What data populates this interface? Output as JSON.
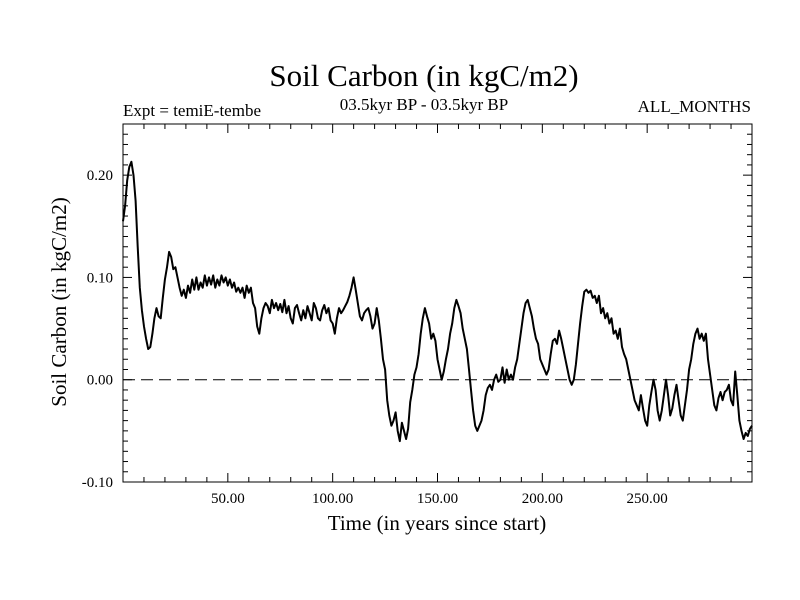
{
  "chart_data": {
    "type": "line",
    "title": "Soil Carbon (in kgC/m2)",
    "subtitle_left": "Expt = temiE-tembe",
    "subtitle_center": "03.5kyr BP - 03.5kyr BP",
    "subtitle_right": "ALL_MONTHS",
    "xlabel": "Time (in years since start)",
    "ylabel": "Soil Carbon (in kgC/m2)",
    "xlim": [
      0,
      300
    ],
    "ylim": [
      -0.1,
      0.25
    ],
    "x_ticks": [
      {
        "value": 50,
        "label": "50.00"
      },
      {
        "value": 100,
        "label": "100.00"
      },
      {
        "value": 150,
        "label": "150.00"
      },
      {
        "value": 200,
        "label": "200.00"
      },
      {
        "value": 250,
        "label": "250.00"
      }
    ],
    "y_ticks": [
      {
        "value": -0.1,
        "label": "-0.10"
      },
      {
        "value": 0.0,
        "label": "0.00"
      },
      {
        "value": 0.1,
        "label": "0.10"
      },
      {
        "value": 0.2,
        "label": "0.20"
      }
    ],
    "reference_line": {
      "y": 0.0,
      "style": "dashed"
    },
    "grid": false,
    "series": [
      {
        "color": "#000000",
        "points": [
          [
            0,
            0.155
          ],
          [
            1,
            0.17
          ],
          [
            2,
            0.195
          ],
          [
            3,
            0.208
          ],
          [
            4,
            0.213
          ],
          [
            5,
            0.2
          ],
          [
            6,
            0.175
          ],
          [
            7,
            0.13
          ],
          [
            8,
            0.09
          ],
          [
            9,
            0.068
          ],
          [
            10,
            0.052
          ],
          [
            11,
            0.04
          ],
          [
            12,
            0.03
          ],
          [
            13,
            0.032
          ],
          [
            14,
            0.045
          ],
          [
            15,
            0.06
          ],
          [
            16,
            0.07
          ],
          [
            17,
            0.062
          ],
          [
            18,
            0.06
          ],
          [
            19,
            0.08
          ],
          [
            20,
            0.098
          ],
          [
            21,
            0.11
          ],
          [
            22,
            0.125
          ],
          [
            23,
            0.12
          ],
          [
            24,
            0.108
          ],
          [
            25,
            0.11
          ],
          [
            26,
            0.1
          ],
          [
            27,
            0.09
          ],
          [
            28,
            0.082
          ],
          [
            29,
            0.088
          ],
          [
            30,
            0.08
          ],
          [
            31,
            0.092
          ],
          [
            32,
            0.085
          ],
          [
            33,
            0.098
          ],
          [
            34,
            0.088
          ],
          [
            35,
            0.1
          ],
          [
            36,
            0.088
          ],
          [
            37,
            0.095
          ],
          [
            38,
            0.09
          ],
          [
            39,
            0.102
          ],
          [
            40,
            0.092
          ],
          [
            41,
            0.1
          ],
          [
            42,
            0.093
          ],
          [
            43,
            0.102
          ],
          [
            44,
            0.09
          ],
          [
            45,
            0.098
          ],
          [
            46,
            0.092
          ],
          [
            47,
            0.102
          ],
          [
            48,
            0.095
          ],
          [
            49,
            0.1
          ],
          [
            50,
            0.092
          ],
          [
            51,
            0.098
          ],
          [
            52,
            0.09
          ],
          [
            53,
            0.095
          ],
          [
            54,
            0.086
          ],
          [
            55,
            0.09
          ],
          [
            56,
            0.085
          ],
          [
            57,
            0.09
          ],
          [
            58,
            0.08
          ],
          [
            59,
            0.092
          ],
          [
            60,
            0.085
          ],
          [
            61,
            0.09
          ],
          [
            62,
            0.075
          ],
          [
            63,
            0.07
          ],
          [
            64,
            0.052
          ],
          [
            65,
            0.045
          ],
          [
            66,
            0.06
          ],
          [
            67,
            0.07
          ],
          [
            68,
            0.075
          ],
          [
            69,
            0.072
          ],
          [
            70,
            0.065
          ],
          [
            71,
            0.078
          ],
          [
            72,
            0.07
          ],
          [
            73,
            0.075
          ],
          [
            74,
            0.068
          ],
          [
            75,
            0.074
          ],
          [
            76,
            0.066
          ],
          [
            77,
            0.078
          ],
          [
            78,
            0.065
          ],
          [
            79,
            0.072
          ],
          [
            80,
            0.06
          ],
          [
            81,
            0.055
          ],
          [
            82,
            0.07
          ],
          [
            83,
            0.073
          ],
          [
            84,
            0.065
          ],
          [
            85,
            0.058
          ],
          [
            86,
            0.068
          ],
          [
            87,
            0.06
          ],
          [
            88,
            0.072
          ],
          [
            89,
            0.065
          ],
          [
            90,
            0.058
          ],
          [
            91,
            0.075
          ],
          [
            92,
            0.07
          ],
          [
            93,
            0.06
          ],
          [
            94,
            0.058
          ],
          [
            95,
            0.068
          ],
          [
            96,
            0.073
          ],
          [
            97,
            0.065
          ],
          [
            98,
            0.07
          ],
          [
            99,
            0.058
          ],
          [
            100,
            0.055
          ],
          [
            101,
            0.045
          ],
          [
            102,
            0.06
          ],
          [
            103,
            0.07
          ],
          [
            104,
            0.065
          ],
          [
            105,
            0.068
          ],
          [
            106,
            0.072
          ],
          [
            107,
            0.076
          ],
          [
            108,
            0.082
          ],
          [
            109,
            0.09
          ],
          [
            110,
            0.1
          ],
          [
            111,
            0.088
          ],
          [
            112,
            0.075
          ],
          [
            113,
            0.062
          ],
          [
            114,
            0.058
          ],
          [
            115,
            0.065
          ],
          [
            116,
            0.068
          ],
          [
            117,
            0.07
          ],
          [
            118,
            0.062
          ],
          [
            119,
            0.05
          ],
          [
            120,
            0.055
          ],
          [
            121,
            0.07
          ],
          [
            122,
            0.058
          ],
          [
            123,
            0.04
          ],
          [
            124,
            0.02
          ],
          [
            125,
            0.01
          ],
          [
            126,
            -0.02
          ],
          [
            127,
            -0.035
          ],
          [
            128,
            -0.045
          ],
          [
            129,
            -0.04
          ],
          [
            130,
            -0.032
          ],
          [
            131,
            -0.05
          ],
          [
            132,
            -0.06
          ],
          [
            133,
            -0.042
          ],
          [
            134,
            -0.05
          ],
          [
            135,
            -0.058
          ],
          [
            136,
            -0.048
          ],
          [
            137,
            -0.022
          ],
          [
            138,
            -0.01
          ],
          [
            139,
            0.005
          ],
          [
            140,
            0.012
          ],
          [
            141,
            0.025
          ],
          [
            142,
            0.045
          ],
          [
            143,
            0.06
          ],
          [
            144,
            0.07
          ],
          [
            145,
            0.062
          ],
          [
            146,
            0.055
          ],
          [
            147,
            0.04
          ],
          [
            148,
            0.045
          ],
          [
            149,
            0.038
          ],
          [
            150,
            0.02
          ],
          [
            151,
            0.01
          ],
          [
            152,
            0.0
          ],
          [
            153,
            0.008
          ],
          [
            154,
            0.02
          ],
          [
            155,
            0.03
          ],
          [
            156,
            0.045
          ],
          [
            157,
            0.055
          ],
          [
            158,
            0.07
          ],
          [
            159,
            0.078
          ],
          [
            160,
            0.072
          ],
          [
            161,
            0.065
          ],
          [
            162,
            0.05
          ],
          [
            163,
            0.04
          ],
          [
            164,
            0.03
          ],
          [
            165,
            0.01
          ],
          [
            166,
            -0.01
          ],
          [
            167,
            -0.03
          ],
          [
            168,
            -0.045
          ],
          [
            169,
            -0.05
          ],
          [
            170,
            -0.045
          ],
          [
            171,
            -0.04
          ],
          [
            172,
            -0.03
          ],
          [
            173,
            -0.015
          ],
          [
            174,
            -0.008
          ],
          [
            175,
            -0.005
          ],
          [
            176,
            -0.01
          ],
          [
            177,
            0.0
          ],
          [
            178,
            0.005
          ],
          [
            179,
            -0.002
          ],
          [
            180,
            0.0
          ],
          [
            181,
            0.012
          ],
          [
            182,
            -0.003
          ],
          [
            183,
            0.01
          ],
          [
            184,
            0.0
          ],
          [
            185,
            0.005
          ],
          [
            186,
            0.0
          ],
          [
            187,
            0.012
          ],
          [
            188,
            0.02
          ],
          [
            189,
            0.035
          ],
          [
            190,
            0.05
          ],
          [
            191,
            0.065
          ],
          [
            192,
            0.075
          ],
          [
            193,
            0.078
          ],
          [
            194,
            0.07
          ],
          [
            195,
            0.062
          ],
          [
            196,
            0.05
          ],
          [
            197,
            0.04
          ],
          [
            198,
            0.035
          ],
          [
            199,
            0.02
          ],
          [
            200,
            0.015
          ],
          [
            201,
            0.01
          ],
          [
            202,
            0.005
          ],
          [
            203,
            0.01
          ],
          [
            204,
            0.025
          ],
          [
            205,
            0.038
          ],
          [
            206,
            0.04
          ],
          [
            207,
            0.035
          ],
          [
            208,
            0.048
          ],
          [
            209,
            0.04
          ],
          [
            210,
            0.03
          ],
          [
            211,
            0.02
          ],
          [
            212,
            0.01
          ],
          [
            213,
            0.0
          ],
          [
            214,
            -0.005
          ],
          [
            215,
            0.0
          ],
          [
            216,
            0.015
          ],
          [
            217,
            0.035
          ],
          [
            218,
            0.055
          ],
          [
            219,
            0.072
          ],
          [
            220,
            0.086
          ],
          [
            221,
            0.088
          ],
          [
            222,
            0.085
          ],
          [
            223,
            0.087
          ],
          [
            224,
            0.08
          ],
          [
            225,
            0.082
          ],
          [
            226,
            0.075
          ],
          [
            227,
            0.082
          ],
          [
            228,
            0.065
          ],
          [
            229,
            0.07
          ],
          [
            230,
            0.06
          ],
          [
            231,
            0.065
          ],
          [
            232,
            0.055
          ],
          [
            233,
            0.06
          ],
          [
            234,
            0.045
          ],
          [
            235,
            0.048
          ],
          [
            236,
            0.04
          ],
          [
            237,
            0.05
          ],
          [
            238,
            0.032
          ],
          [
            239,
            0.025
          ],
          [
            240,
            0.02
          ],
          [
            241,
            0.01
          ],
          [
            242,
            0.0
          ],
          [
            243,
            -0.01
          ],
          [
            244,
            -0.02
          ],
          [
            245,
            -0.025
          ],
          [
            246,
            -0.03
          ],
          [
            247,
            -0.015
          ],
          [
            248,
            -0.028
          ],
          [
            249,
            -0.04
          ],
          [
            250,
            -0.045
          ],
          [
            251,
            -0.025
          ],
          [
            252,
            -0.012
          ],
          [
            253,
            0.0
          ],
          [
            254,
            -0.01
          ],
          [
            255,
            -0.03
          ],
          [
            256,
            -0.04
          ],
          [
            257,
            -0.03
          ],
          [
            258,
            -0.015
          ],
          [
            259,
            0.0
          ],
          [
            260,
            -0.015
          ],
          [
            261,
            -0.035
          ],
          [
            262,
            -0.028
          ],
          [
            263,
            -0.015
          ],
          [
            264,
            -0.005
          ],
          [
            265,
            -0.02
          ],
          [
            266,
            -0.035
          ],
          [
            267,
            -0.04
          ],
          [
            268,
            -0.025
          ],
          [
            269,
            -0.01
          ],
          [
            270,
            0.01
          ],
          [
            271,
            0.02
          ],
          [
            272,
            0.035
          ],
          [
            273,
            0.045
          ],
          [
            274,
            0.05
          ],
          [
            275,
            0.04
          ],
          [
            276,
            0.045
          ],
          [
            277,
            0.038
          ],
          [
            278,
            0.045
          ],
          [
            279,
            0.02
          ],
          [
            280,
            0.005
          ],
          [
            281,
            -0.01
          ],
          [
            282,
            -0.025
          ],
          [
            283,
            -0.03
          ],
          [
            284,
            -0.018
          ],
          [
            285,
            -0.012
          ],
          [
            286,
            -0.02
          ],
          [
            287,
            -0.012
          ],
          [
            288,
            -0.01
          ],
          [
            289,
            -0.005
          ],
          [
            290,
            -0.02
          ],
          [
            291,
            -0.025
          ],
          [
            292,
            0.008
          ],
          [
            293,
            -0.015
          ],
          [
            294,
            -0.04
          ],
          [
            295,
            -0.05
          ],
          [
            296,
            -0.058
          ],
          [
            297,
            -0.052
          ],
          [
            298,
            -0.055
          ],
          [
            299,
            -0.048
          ],
          [
            300,
            -0.045
          ]
        ]
      }
    ]
  }
}
